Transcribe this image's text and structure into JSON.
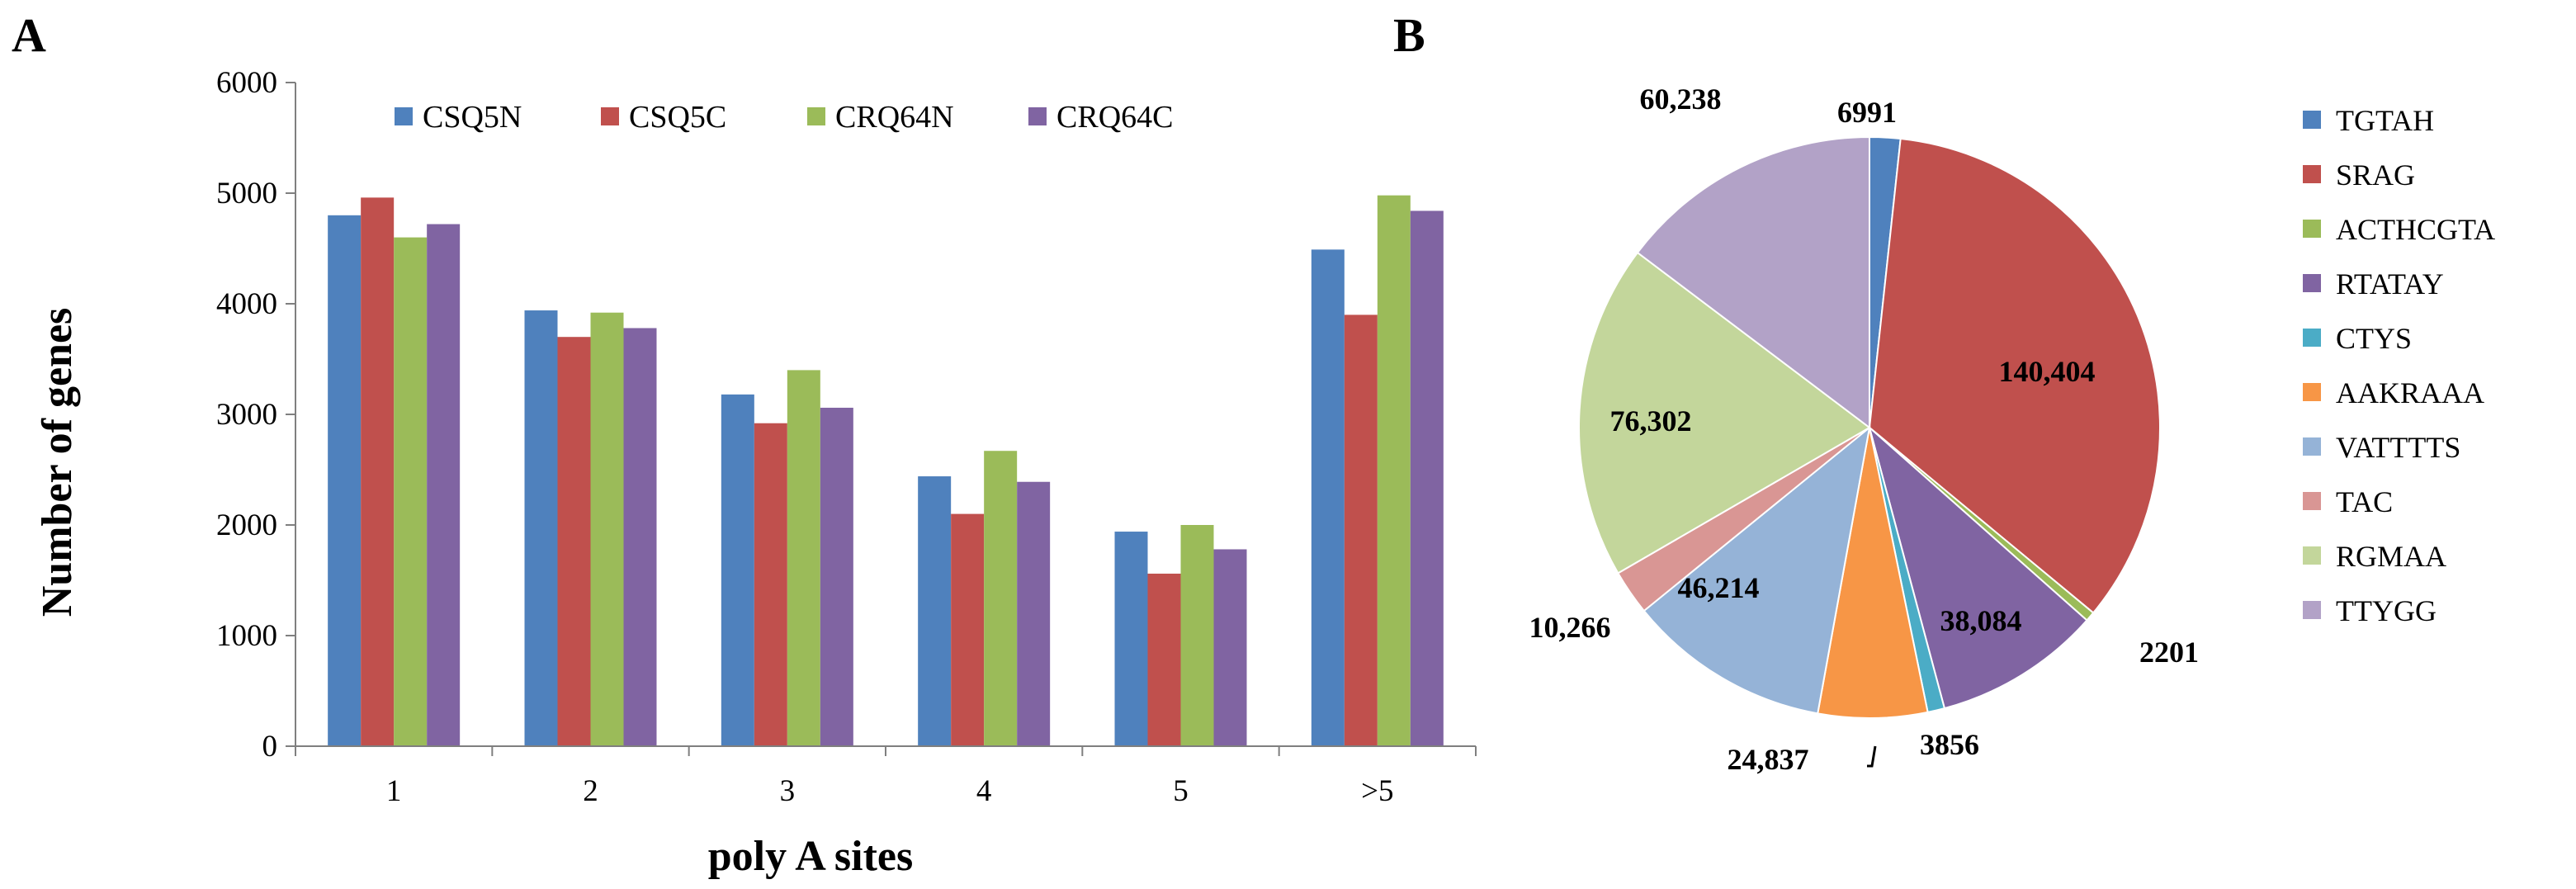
{
  "panels": {
    "a": "A",
    "b": "B"
  },
  "chart_data": [
    {
      "type": "bar",
      "title": "",
      "xlabel": "poly A sites",
      "ylabel": "Number of genes",
      "categories": [
        "1",
        "2",
        "3",
        "4",
        "5",
        ">5"
      ],
      "ylim": [
        0,
        6000
      ],
      "yticks": [
        0,
        1000,
        2000,
        3000,
        4000,
        5000,
        6000
      ],
      "legend_position": "top",
      "grid": false,
      "series": [
        {
          "name": "CSQ5N",
          "color": "#4F81BD",
          "values": [
            4800,
            3940,
            3180,
            2440,
            1940,
            4490
          ]
        },
        {
          "name": "CSQ5C",
          "color": "#C0504D",
          "values": [
            4960,
            3700,
            2920,
            2100,
            1560,
            3900
          ]
        },
        {
          "name": "CRQ64N",
          "color": "#9BBB59",
          "values": [
            4600,
            3920,
            3400,
            2670,
            2000,
            4980
          ]
        },
        {
          "name": "CRQ64C",
          "color": "#8064A2",
          "values": [
            4720,
            3780,
            3060,
            2390,
            1780,
            4840
          ]
        }
      ]
    },
    {
      "type": "pie",
      "title": "",
      "legend_position": "right",
      "slices": [
        {
          "name": "TGTAH",
          "value": 6991,
          "label": "6991",
          "color": "#4F81BD"
        },
        {
          "name": "SRAG",
          "value": 140404,
          "label": "140,404",
          "color": "#C0504D"
        },
        {
          "name": "ACTHCGTA",
          "value": 2201,
          "label": "2201",
          "color": "#9BBB59"
        },
        {
          "name": "RTATAY",
          "value": 38084,
          "label": "38,084",
          "color": "#8064A2"
        },
        {
          "name": "CTYS",
          "value": 3856,
          "label": "3856",
          "color": "#4BACC6"
        },
        {
          "name": "AAKRAAA",
          "value": 24837,
          "label": "24,837",
          "color": "#F79646"
        },
        {
          "name": "VATTTTS",
          "value": 46214,
          "label": "46,214",
          "color": "#95B3D7"
        },
        {
          "name": "TAC",
          "value": 10266,
          "label": "10,266",
          "color": "#D99694"
        },
        {
          "name": "RGMAA",
          "value": 76302,
          "label": "76,302",
          "color": "#C3D69B"
        },
        {
          "name": "TTYGG",
          "value": 60238,
          "label": "60,238",
          "color": "#B2A2C7"
        }
      ]
    }
  ]
}
